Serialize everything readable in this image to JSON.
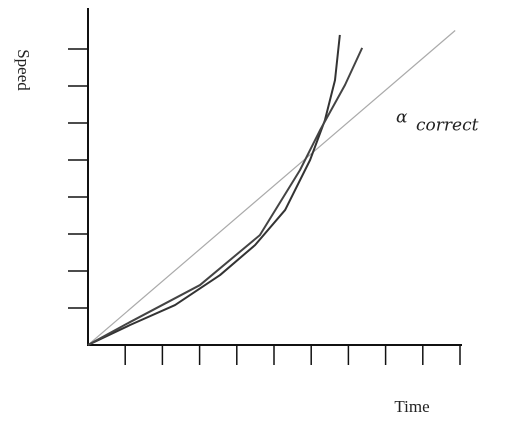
{
  "chart_data": {
    "type": "line",
    "x_label": "Time",
    "y_label": "Speed",
    "annotation": {
      "symbol": "α",
      "subscript": "correct"
    },
    "xlim": [
      0,
      10
    ],
    "ylim": [
      0,
      9
    ],
    "xticks": [
      1,
      2,
      3,
      4,
      5,
      6,
      7,
      8,
      9,
      10
    ],
    "yticks": [
      1,
      2,
      3,
      4,
      5,
      6,
      7,
      8
    ],
    "series": [
      {
        "color": "#aaaaaa",
        "x": [
          0,
          9.87
        ],
        "values": [
          0,
          8.5
        ]
      },
      {
        "color": "#333333",
        "x": [
          0,
          1.13,
          2.34,
          3.55,
          4.49,
          5.3,
          5.97,
          6.37,
          6.64,
          6.77
        ],
        "values": [
          0,
          0.54,
          1.08,
          1.89,
          2.7,
          3.65,
          5.0,
          6.08,
          7.16,
          8.38
        ]
      },
      {
        "color": "#444444",
        "x": [
          0,
          1.13,
          3.01,
          4.62,
          5.7,
          6.24,
          6.91,
          7.37
        ],
        "values": [
          0,
          0.62,
          1.62,
          2.97,
          4.73,
          5.81,
          7.03,
          8.03
        ]
      }
    ]
  }
}
